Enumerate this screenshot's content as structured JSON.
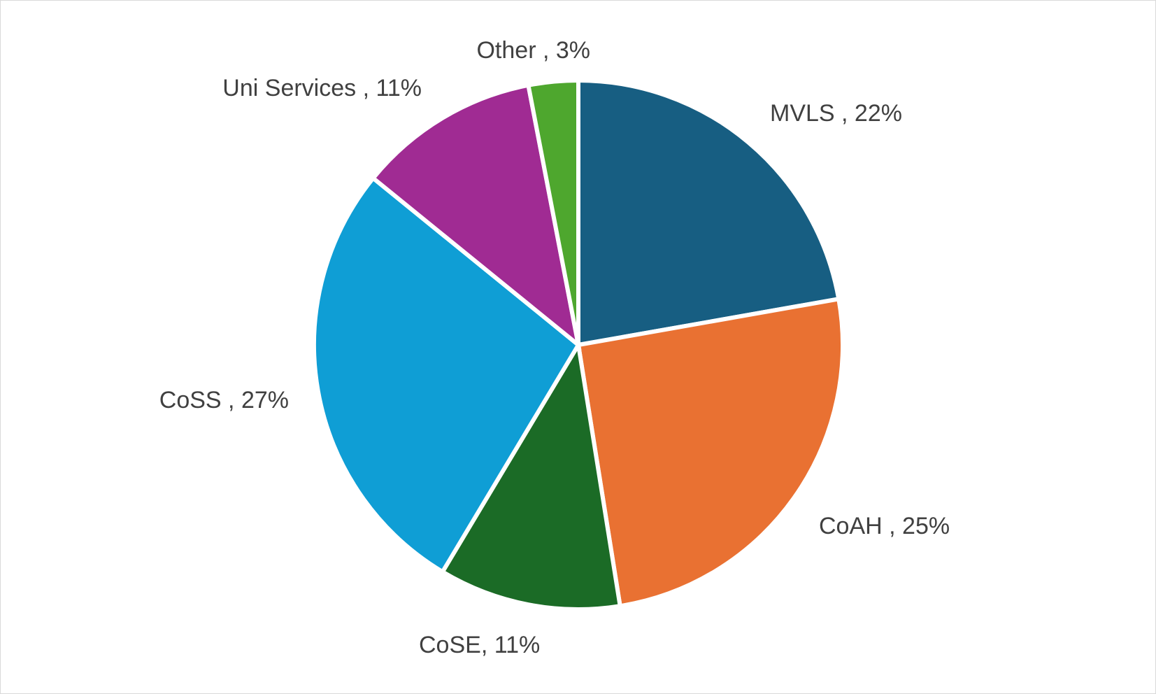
{
  "chart_data": {
    "type": "pie",
    "title": "",
    "slices": [
      {
        "label": "MVLS",
        "value": 22,
        "display": "MVLS , 22%",
        "color": "#175e82"
      },
      {
        "label": "CoAH",
        "value": 25,
        "display": "CoAH , 25%",
        "color": "#e97132"
      },
      {
        "label": "CoSE",
        "value": 11,
        "display": "CoSE, 11%",
        "color": "#1b6b26"
      },
      {
        "label": "CoSS",
        "value": 27,
        "display": "CoSS , 27%",
        "color": "#0f9ed5"
      },
      {
        "label": "Uni Services",
        "value": 11,
        "display": "Uni Services , 11%",
        "color": "#a02b93"
      },
      {
        "label": "Other",
        "value": 3,
        "display": "Other , 3%",
        "color": "#4ea72e"
      }
    ],
    "legend": "none",
    "start_angle": "12 o'clock",
    "direction": "clockwise"
  }
}
